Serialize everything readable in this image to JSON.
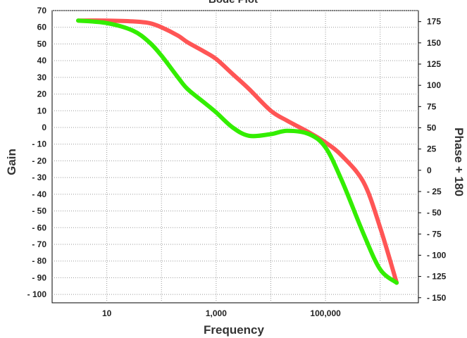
{
  "chart_data": {
    "type": "line",
    "title": "Bode Plot",
    "xlabel": "Frequency",
    "ylabel": "Gain",
    "y2label": "Phase + 180",
    "x_scale": "log",
    "x_ticks": [
      {
        "value": 10,
        "label": "10"
      },
      {
        "value": 1000,
        "label": "1,000"
      },
      {
        "value": 100000,
        "label": "100,000"
      }
    ],
    "xlim": [
      1,
      5000000
    ],
    "ylim": [
      -105,
      70
    ],
    "y_ticks": [
      70,
      60,
      50,
      40,
      30,
      20,
      10,
      0,
      -10,
      -20,
      -30,
      -40,
      -50,
      -60,
      -70,
      -80,
      -90,
      -100
    ],
    "y_tick_labels": [
      "70",
      "60",
      "50",
      "40",
      "30",
      "20",
      "10",
      "0",
      "- 10",
      "- 20",
      "- 30",
      "- 40",
      "- 50",
      "- 60",
      "- 70",
      "- 80",
      "- 90",
      "- 100"
    ],
    "y2lim": [
      -156,
      188
    ],
    "y2_ticks": [
      175,
      150,
      125,
      100,
      75,
      50,
      25,
      0,
      -25,
      -50,
      -75,
      -100,
      -125,
      -150
    ],
    "y2_tick_labels": [
      "175",
      "150",
      "125",
      "100",
      "75",
      "50",
      "25",
      "0",
      "- 25",
      "- 50",
      "- 75",
      "- 100",
      "- 125",
      "- 150"
    ],
    "grid": true,
    "series": [
      {
        "axis": "left",
        "color": "#ff5555",
        "x": [
          3,
          10,
          30,
          60,
          100,
          200,
          300,
          600,
          1000,
          2000,
          4000,
          10000,
          20000,
          50000,
          100000,
          200000,
          500000,
          1000000,
          2000000
        ],
        "values": [
          64,
          64,
          63.5,
          62.5,
          60,
          55,
          51,
          45.5,
          41,
          32,
          23,
          10,
          4,
          -3,
          -9,
          -17,
          -33,
          -60,
          -93
        ]
      },
      {
        "axis": "left",
        "color": "#33ee00",
        "x": [
          3,
          10,
          30,
          60,
          100,
          200,
          300,
          600,
          1000,
          2000,
          4000,
          10000,
          20000,
          50000,
          100000,
          200000,
          500000,
          1000000,
          2000000
        ],
        "values": [
          64,
          62.5,
          58,
          51,
          43,
          30,
          23,
          15,
          9,
          0,
          -5,
          -4,
          -2,
          -4,
          -12,
          -32,
          -64,
          -85,
          -93
        ]
      }
    ]
  }
}
